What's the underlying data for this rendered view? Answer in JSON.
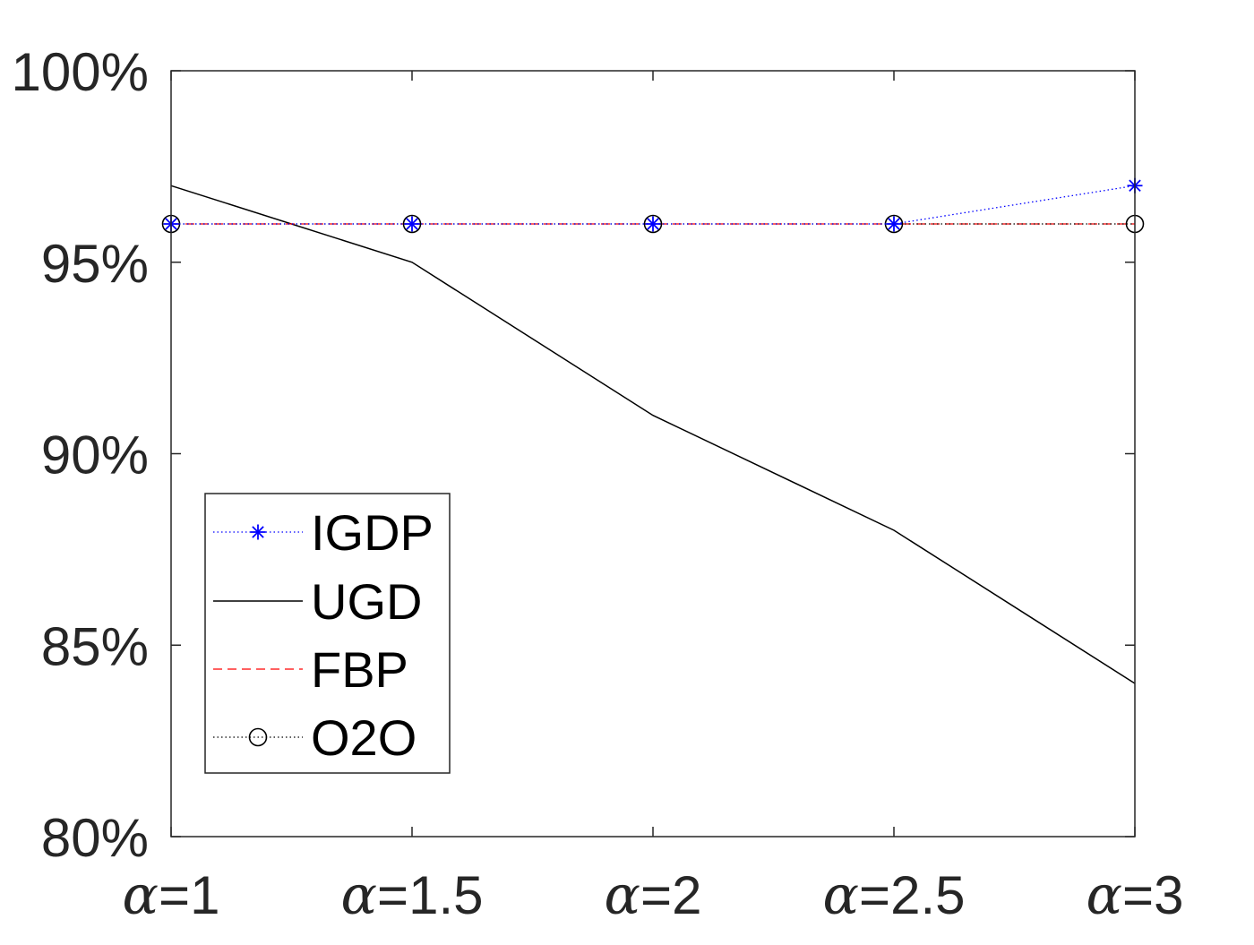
{
  "chart_data": {
    "type": "line",
    "title": "",
    "xlabel": "",
    "ylabel": "",
    "categories": [
      "α=1",
      "α=1.5",
      "α=2",
      "α=2.5",
      "α=3"
    ],
    "y_tick_labels": [
      "80%",
      "85%",
      "90%",
      "95%",
      "100%"
    ],
    "y_ticks": [
      80,
      85,
      90,
      95,
      100
    ],
    "ylim": [
      80,
      100
    ],
    "grid": false,
    "legend_position": "lower-left",
    "series": [
      {
        "name": "IGDP",
        "values": [
          96,
          96,
          96,
          96,
          97
        ],
        "color": "#0000ff",
        "line": "dotted",
        "marker": "asterisk"
      },
      {
        "name": "UGD",
        "values": [
          97,
          95,
          91,
          88,
          84
        ],
        "color": "#000000",
        "line": "solid",
        "marker": "none"
      },
      {
        "name": "FBP",
        "values": [
          96,
          96,
          96,
          96,
          96
        ],
        "color": "#ff0000",
        "line": "dashed",
        "marker": "none"
      },
      {
        "name": "O2O",
        "values": [
          96,
          96,
          96,
          96,
          96
        ],
        "color": "#000000",
        "line": "dotted",
        "marker": "circle"
      }
    ]
  }
}
